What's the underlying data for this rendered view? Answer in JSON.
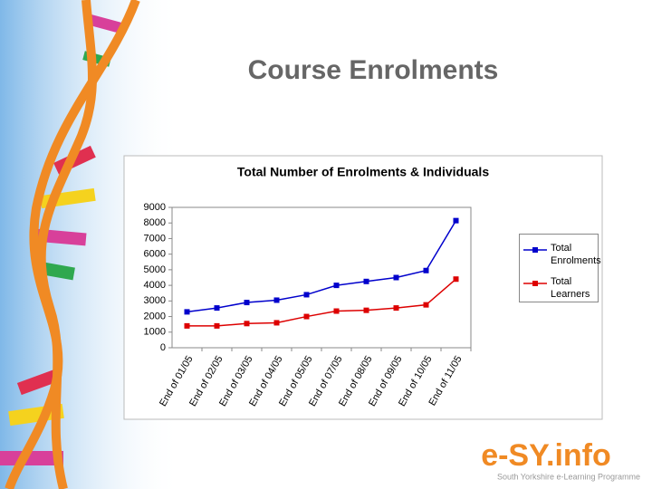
{
  "slide": {
    "title": "Course Enrolments",
    "logo": "e-SY.info",
    "tagline": "South Yorkshire e-Learning Programme"
  },
  "chart_data": {
    "type": "line",
    "title": "Total Number of Enrolments & Individuals",
    "categories": [
      "End of 01/05",
      "End of 02/05",
      "End of 03/05",
      "End of 04/05",
      "End of 05/05",
      "End of 07/05",
      "End of 08/05",
      "End of 09/05",
      "End of 10/05",
      "End of 11/05"
    ],
    "series": [
      {
        "name": "Total Enrolments",
        "color": "#0000cc",
        "values": [
          2300,
          2550,
          2900,
          3050,
          3400,
          4000,
          4250,
          4500,
          4950,
          8150
        ]
      },
      {
        "name": "Total Learners",
        "color": "#dd0000",
        "values": [
          1400,
          1400,
          1550,
          1600,
          2000,
          2350,
          2400,
          2550,
          2750,
          4400
        ]
      }
    ],
    "ylim": [
      0,
      9000
    ],
    "yticks": [
      0,
      1000,
      2000,
      3000,
      4000,
      5000,
      6000,
      7000,
      8000,
      9000
    ],
    "grid": false,
    "legend": "right"
  }
}
